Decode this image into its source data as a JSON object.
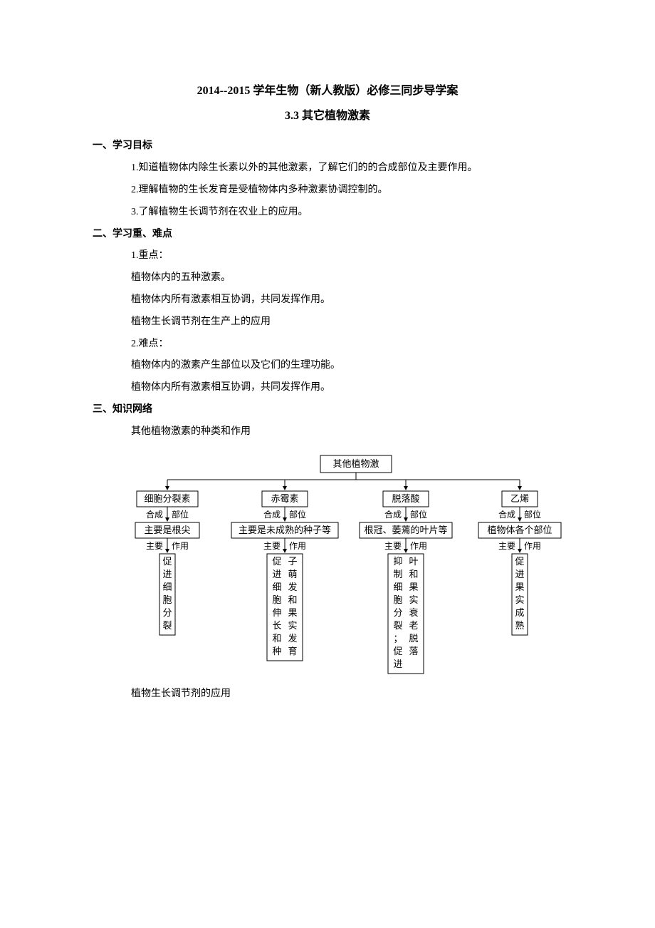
{
  "title": "2014--2015 学年生物（新人教版）必修三同步导学案",
  "subtitle": "3.3 其它植物激素",
  "sections": {
    "s1": {
      "header": "一、学习目标",
      "items": [
        "1.知道植物体内除生长素以外的其他激素，了解它们的的合成部位及主要作用。",
        "2.理解植物的生长发育是受植物体内多种激素协调控制的。",
        "3.了解植物生长调节剂在农业上的应用。"
      ]
    },
    "s2": {
      "header": "二、学习重、难点",
      "key_label": "1.重点：",
      "key_items": [
        "植物体内的五种激素。",
        "植物体内所有激素相互协调，共同发挥作用。",
        "植物生长调节剂在生产上的应用"
      ],
      "diff_label": "2.难点：",
      "diff_items": [
        "植物体内的激素产生部位以及它们的生理功能。",
        "植物体内所有激素相互协调，共同发挥作用。"
      ]
    },
    "s3": {
      "header": "三、知识网络",
      "sub1": "其他植物激素的种类和作用",
      "sub2": "植物生长调节剂的应用"
    }
  },
  "diagram": {
    "root": "其他植物激",
    "synth_label_left": "合成",
    "synth_label_right": "部位",
    "action_label_left": "主要",
    "action_label_right": "作用",
    "columns": [
      {
        "name": "细胞分裂素",
        "site": "主要是根尖",
        "effect": "促进细胞分裂"
      },
      {
        "name": "赤霉素",
        "site": "主要是未成熟的种子等",
        "effect": "促进细胞伸长和种子萌发和果实发育"
      },
      {
        "name": "脱落酸",
        "site": "根冠、萎蔫的叶片等",
        "effect": "抑制细胞分裂；促进叶和果实衰老脱落"
      },
      {
        "name": "乙烯",
        "site": "植物体各个部位",
        "effect": "促进果实成熟"
      }
    ]
  }
}
